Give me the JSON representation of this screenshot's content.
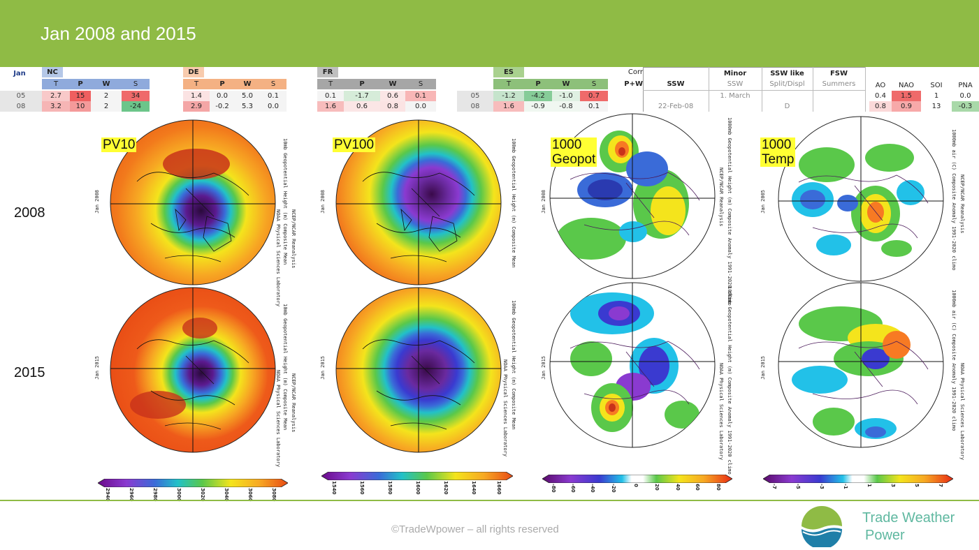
{
  "title": "Jan 2008 and 2015",
  "table": {
    "jan_label": "Jan",
    "rows": [
      "05",
      "08"
    ],
    "groups": [
      {
        "name": "NC",
        "cols": [
          "T",
          "P",
          "W",
          "S"
        ],
        "row1": [
          "2.7",
          "15",
          "2",
          "34"
        ],
        "row2": [
          "3.2",
          "10",
          "2",
          "-24"
        ]
      },
      {
        "name": "DE",
        "cols": [
          "T",
          "P",
          "W",
          "S"
        ],
        "row1": [
          "1.4",
          "0.0",
          "5.0",
          "0.1"
        ],
        "row2": [
          "2.9",
          "-0.2",
          "5.3",
          "0.0"
        ]
      },
      {
        "name": "FR",
        "cols": [
          "T",
          "P",
          "W",
          "S"
        ],
        "row1": [
          "0.1",
          "-1.7",
          "0.6",
          "0.1"
        ],
        "row2": [
          "1.6",
          "0.6",
          "0.8",
          "0.0"
        ]
      },
      {
        "name": "ES",
        "cols": [
          "T",
          "P",
          "W",
          "S"
        ],
        "row1": [
          "-1.2",
          "-4.2",
          "-1.0",
          "0.7"
        ],
        "row2": [
          "1.6",
          "-0.9",
          "-0.8",
          "0.1"
        ]
      }
    ],
    "es_rows": [
      "05",
      "08"
    ],
    "corr_label": "Corr",
    "corr_sub": "P+W",
    "ssw": {
      "head": "SSW",
      "value": "22-Feb-08"
    },
    "minor": {
      "head": "Minor",
      "sub": "SSW",
      "value": "1. March"
    },
    "ssw_like": {
      "head": "SSW like",
      "sub": "Split/Displ",
      "value": "D"
    },
    "fsw": {
      "head": "FSW",
      "sub": "Summers"
    },
    "indices": {
      "cols": [
        "AO",
        "NAO",
        "SOI",
        "PNA"
      ],
      "row1": [
        "0.4",
        "1.5",
        "1",
        "0.0"
      ],
      "row2": [
        "0.8",
        "0.9",
        "13",
        "-0.3"
      ]
    }
  },
  "years": [
    "2008",
    "2015"
  ],
  "tags": {
    "pv10": "PV10",
    "pv100": "PV100",
    "geopot": "1000\nGeopot",
    "temp": "1000\nTemp",
    "geopot_1": "1000",
    "geopot_2": "Geopot",
    "temp_1": "1000",
    "temp_2": "Temp"
  },
  "map_labels": {
    "jan2008": "Jan 2008",
    "jan2015": "Jan 2015",
    "jan2005": "Jan 2005",
    "pv10_desc": "10mb Geopotential Height (m) Composite Mean",
    "pv100_desc": "100mb Geopotential Height (m) Composite Mean",
    "geo_desc": "1000mb Geopotential Height (m) Composite Anomaly 1991-2020 climo",
    "temp_desc": "1000mb air (C) Composite Anomaly 1991-2020 climo",
    "ncep": "NCEP/NCAR Reanalysis",
    "noaa": "NOAA Physical Sciences Laboratory"
  },
  "colorbars": {
    "pv10": [
      "2940",
      "2960",
      "2980",
      "3000",
      "3020",
      "3040",
      "3060",
      "3080"
    ],
    "pv100": [
      "1540",
      "1560",
      "1580",
      "1600",
      "1620",
      "1640",
      "1660"
    ],
    "geo": [
      "-80",
      "-60",
      "-40",
      "-20",
      "0",
      "20",
      "40",
      "60",
      "80"
    ],
    "temp": [
      "-7",
      "-5",
      "-3",
      "-1",
      "1",
      "3",
      "5",
      "7"
    ]
  },
  "footer": {
    "copyright": "©TradeWpower – all rights reserved",
    "logo_line1": "Trade Weather",
    "logo_line2": "Power"
  }
}
